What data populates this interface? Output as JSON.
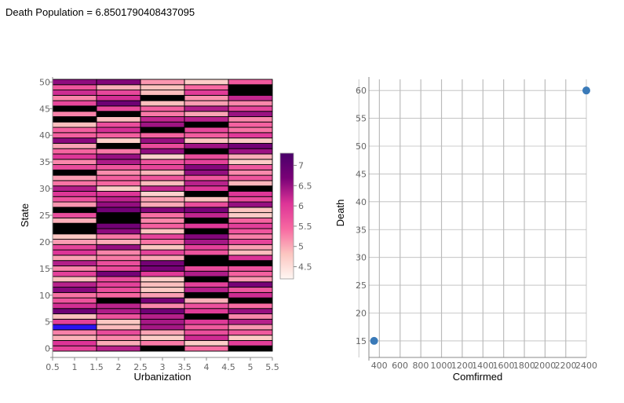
{
  "readout": "Death Population = 6.8501790408437095",
  "chart_data": [
    {
      "type": "heatmap",
      "xlabel": "Urbanization",
      "ylabel": "State",
      "x_ticks": [
        "0.5",
        "1",
        "1.5",
        "2",
        "2.5",
        "3",
        "3.5",
        "4",
        "4.5",
        "5",
        "5.5"
      ],
      "y_ticks": [
        "0",
        "5",
        "10",
        "15",
        "20",
        "25",
        "30",
        "35",
        "40",
        "45",
        "50"
      ],
      "columns": [
        1,
        2,
        3,
        4,
        5
      ],
      "rows": 51,
      "xlim": [
        0.5,
        5.5
      ],
      "ylim": [
        -0.5,
        50.5
      ],
      "colorbar": {
        "ticks": [
          "4.5",
          "5",
          "5.5",
          "6",
          "6.5",
          "7"
        ],
        "range": [
          4.2,
          7.3
        ],
        "colors": [
          "#fff7f3",
          "#fcc5c0",
          "#f768a1",
          "#dd3497",
          "#7a0177",
          "#49006a"
        ]
      },
      "missing_color": "#000000",
      "highlight": {
        "column": 1,
        "row": 4,
        "color": "#2b13f0"
      }
    },
    {
      "type": "scatter",
      "xlabel": "Comfirmed",
      "ylabel": "Death",
      "x_ticks": [
        "400",
        "600",
        "800",
        "1000",
        "1200",
        "1400",
        "1600",
        "1800",
        "2000",
        "2200",
        "2400"
      ],
      "y_ticks": [
        "15",
        "20",
        "25",
        "30",
        "35",
        "40",
        "45",
        "50",
        "55",
        "60"
      ],
      "xlim": [
        300,
        2400
      ],
      "ylim": [
        14,
        62
      ],
      "grid": true,
      "points": [
        {
          "x": 350,
          "y": 15
        },
        {
          "x": 2400,
          "y": 60
        }
      ],
      "point_color": "#3a7ab8"
    }
  ]
}
